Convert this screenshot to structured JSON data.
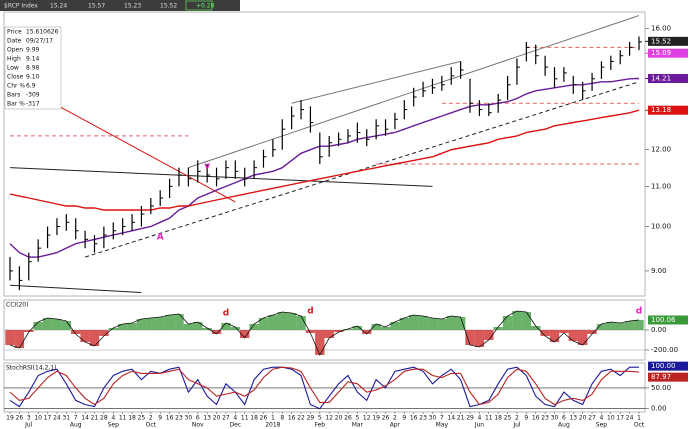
{
  "header": {
    "title": "$RCP Index",
    "quote": [
      "15.24",
      "15.57",
      "15.23",
      "15.52",
      "+0.28"
    ]
  },
  "info_box": [
    [
      "Price",
      "15.610626"
    ],
    [
      "Date",
      "09/27/17"
    ],
    [
      "Open",
      "9.99"
    ],
    [
      "High",
      "9.14"
    ],
    [
      "Low",
      "8.98"
    ],
    [
      "Close",
      "9.10"
    ],
    [
      "Chr %",
      "6.9"
    ],
    [
      "Bars",
      "-309"
    ],
    [
      "Bar %",
      "-317"
    ]
  ],
  "chart_data": [
    {
      "type": "ohlc",
      "log_scale": true,
      "categories": [
        "19",
        "26",
        "3",
        "10",
        "17",
        "24",
        "31",
        "7",
        "14",
        "21",
        "28",
        "4",
        "11",
        "18",
        "25",
        "2",
        "9",
        "16",
        "23",
        "30",
        "6",
        "13",
        "20",
        "27",
        "4",
        "11",
        "18",
        "26",
        "1",
        "8",
        "16",
        "22",
        "29",
        "5",
        "12",
        "20",
        "26",
        "5",
        "12",
        "19",
        "26",
        "2",
        "9",
        "16",
        "23",
        "30",
        "7",
        "14",
        "21",
        "29",
        "4",
        "11",
        "18",
        "25",
        "2",
        "9",
        "16",
        "23",
        "30",
        "6",
        "13",
        "20",
        "27",
        "4",
        "10",
        "17",
        "24",
        "1"
      ],
      "month_labels": [
        null,
        null,
        "Jul",
        null,
        null,
        null,
        null,
        "Aug",
        null,
        null,
        null,
        "Sep",
        null,
        null,
        null,
        "Oct",
        null,
        null,
        null,
        null,
        "Nov",
        null,
        null,
        null,
        "Dec",
        null,
        null,
        null,
        "2018",
        null,
        null,
        null,
        null,
        "Feb",
        null,
        null,
        null,
        "Mar",
        null,
        null,
        null,
        "Apr",
        null,
        null,
        null,
        null,
        "May",
        null,
        null,
        null,
        "Jun",
        null,
        null,
        null,
        "Jul",
        null,
        null,
        null,
        null,
        "Aug",
        null,
        null,
        null,
        "Sep",
        null,
        null,
        null,
        "Oct"
      ],
      "high": [
        9.3,
        9.1,
        9.4,
        9.7,
        10.0,
        10.2,
        10.3,
        10.2,
        9.9,
        9.8,
        10.0,
        10.1,
        10.2,
        10.3,
        10.5,
        10.7,
        10.9,
        11.2,
        11.5,
        11.5,
        11.7,
        11.6,
        11.5,
        11.7,
        11.7,
        11.5,
        11.7,
        12.0,
        12.3,
        12.9,
        13.3,
        13.5,
        13.3,
        12.5,
        12.4,
        12.5,
        12.6,
        12.8,
        12.6,
        12.9,
        12.9,
        13.1,
        13.5,
        13.9,
        14.1,
        14.2,
        14.3,
        14.6,
        14.8,
        14.2,
        13.5,
        13.4,
        13.7,
        14.3,
        14.9,
        15.5,
        15.4,
        15.0,
        14.6,
        14.6,
        14.3,
        14.1,
        14.4,
        14.8,
        15.0,
        15.2,
        15.5,
        15.7
      ],
      "low": [
        8.8,
        8.6,
        8.8,
        9.2,
        9.5,
        9.8,
        9.9,
        9.7,
        9.5,
        9.4,
        9.5,
        9.7,
        9.8,
        9.9,
        10.0,
        10.3,
        10.5,
        10.7,
        11.0,
        11.0,
        11.1,
        11.1,
        11.0,
        11.2,
        11.2,
        11.0,
        11.2,
        11.5,
        11.8,
        12.0,
        12.6,
        12.9,
        12.5,
        11.6,
        11.8,
        12.1,
        12.2,
        12.2,
        12.1,
        12.3,
        12.4,
        12.6,
        12.9,
        13.3,
        13.6,
        13.7,
        13.8,
        14.0,
        14.2,
        13.1,
        13.0,
        13.0,
        13.1,
        13.5,
        14.0,
        14.8,
        14.7,
        14.3,
        13.9,
        14.1,
        13.7,
        13.5,
        13.8,
        14.2,
        14.5,
        14.7,
        15.0,
        15.2
      ],
      "close": [
        9.0,
        8.8,
        9.2,
        9.5,
        9.8,
        10.0,
        10.1,
        9.9,
        9.7,
        9.6,
        9.8,
        9.9,
        10.0,
        10.1,
        10.3,
        10.5,
        10.7,
        11.0,
        11.3,
        11.2,
        11.4,
        11.3,
        11.2,
        11.5,
        11.4,
        11.2,
        11.5,
        11.8,
        12.0,
        12.6,
        13.0,
        13.2,
        12.8,
        11.8,
        12.2,
        12.3,
        12.4,
        12.5,
        12.3,
        12.7,
        12.6,
        12.9,
        13.2,
        13.6,
        13.8,
        13.9,
        14.0,
        14.3,
        14.5,
        13.4,
        13.2,
        13.1,
        13.5,
        14.0,
        14.6,
        15.3,
        15.0,
        14.6,
        14.2,
        14.4,
        14.0,
        13.8,
        14.2,
        14.6,
        14.8,
        15.0,
        15.3,
        15.5
      ],
      "bar_color": "#000000",
      "series": [
        {
          "color": "#6a1b9a",
          "values": [
            9.6,
            9.4,
            9.3,
            9.3,
            9.35,
            9.4,
            9.5,
            9.6,
            9.65,
            9.7,
            9.75,
            9.8,
            9.85,
            9.9,
            9.95,
            10.0,
            10.1,
            10.2,
            10.4,
            10.5,
            10.7,
            10.8,
            10.9,
            11.0,
            11.1,
            11.2,
            11.3,
            11.35,
            11.4,
            11.5,
            11.7,
            11.9,
            12.0,
            12.1,
            12.1,
            12.15,
            12.2,
            12.3,
            12.35,
            12.4,
            12.45,
            12.5,
            12.6,
            12.7,
            12.8,
            12.9,
            13.0,
            13.1,
            13.2,
            13.3,
            13.35,
            13.35,
            13.4,
            13.45,
            13.55,
            13.7,
            13.8,
            13.85,
            13.9,
            13.95,
            14.0,
            14.0,
            14.05,
            14.1,
            14.1,
            14.15,
            14.2,
            14.21
          ]
        },
        {
          "color": "#dd1111",
          "values": [
            10.8,
            10.75,
            10.7,
            10.65,
            10.6,
            10.55,
            10.5,
            10.5,
            10.45,
            10.45,
            10.4,
            10.4,
            10.4,
            10.4,
            10.4,
            10.4,
            10.45,
            10.45,
            10.5,
            10.5,
            10.55,
            10.6,
            10.65,
            10.7,
            10.75,
            10.8,
            10.85,
            10.9,
            10.95,
            11.0,
            11.05,
            11.1,
            11.15,
            11.2,
            11.25,
            11.3,
            11.35,
            11.4,
            11.45,
            11.5,
            11.55,
            11.6,
            11.65,
            11.7,
            11.75,
            11.8,
            11.9,
            12.0,
            12.05,
            12.1,
            12.15,
            12.2,
            12.3,
            12.35,
            12.4,
            12.5,
            12.55,
            12.6,
            12.7,
            12.75,
            12.8,
            12.85,
            12.9,
            12.95,
            13.0,
            13.05,
            13.1,
            13.18
          ]
        }
      ],
      "ylim": [
        8.48,
        16.64
      ],
      "yticks": [
        {
          "value": 16,
          "label": "16.00"
        },
        {
          "value": 12,
          "label": "12.00"
        },
        {
          "value": 11,
          "label": "11.00"
        },
        {
          "value": 10,
          "label": "10.00"
        },
        {
          "value": 9,
          "label": "9.00"
        }
      ],
      "price_markers": [
        {
          "value": 15.52,
          "label": "15.52",
          "color": "#222222"
        },
        {
          "value": 15.09,
          "label": "15.09",
          "color": "#e040e0"
        },
        {
          "value": 14.21,
          "label": "14.21",
          "color": "#6a1b9a"
        },
        {
          "value": 13.18,
          "label": "13.18",
          "color": "#dd1111"
        }
      ],
      "trendlines": [
        {
          "from": [
            19,
            11.5
          ],
          "to": [
            67,
            16.5
          ],
          "color": "#777777",
          "dashed": false
        },
        {
          "from": [
            30,
            13.4
          ],
          "to": [
            48,
            14.8
          ],
          "color": "#777777",
          "dashed": false
        },
        {
          "from": [
            8,
            9.3
          ],
          "to": [
            67,
            14.1
          ],
          "color": "#222222",
          "dashed": true
        },
        {
          "from": [
            0,
            11.5
          ],
          "to": [
            45,
            11.0
          ],
          "color": "#222222",
          "dashed": false
        },
        {
          "from": [
            0,
            8.7
          ],
          "to": [
            14,
            8.55
          ],
          "color": "#222222",
          "dashed": false
        },
        {
          "from": [
            1,
            14.0
          ],
          "to": [
            24,
            10.6
          ],
          "color": "#dd1111",
          "dashed": false
        },
        {
          "from": [
            0,
            12.4
          ],
          "to": [
            19,
            12.4
          ],
          "color": "#dd6666",
          "dashed": true
        },
        {
          "from": [
            39,
            11.6
          ],
          "to": [
            67,
            11.6
          ],
          "color": "#dd6666",
          "dashed": true
        },
        {
          "from": [
            46,
            13.4
          ],
          "to": [
            67,
            13.4
          ],
          "color": "#dd6666",
          "dashed": true
        },
        {
          "from": [
            55,
            15.3
          ],
          "to": [
            67,
            15.3
          ],
          "color": "#dd6666",
          "dashed": true
        }
      ],
      "annotations": [
        {
          "text": "A",
          "at": [
            16,
            9.75
          ],
          "color": "#e020c0"
        },
        {
          "text": "v",
          "at": [
            21,
            11.55
          ],
          "color": "#e020c0"
        }
      ]
    },
    {
      "type": "cci",
      "title": "CCI(20)",
      "pos_color": "#3a9a3a",
      "neg_color": "#cc2222",
      "values": [
        -150,
        -180,
        -20,
        80,
        120,
        110,
        90,
        -40,
        -120,
        -160,
        -60,
        20,
        60,
        70,
        110,
        120,
        130,
        150,
        160,
        60,
        80,
        20,
        -40,
        70,
        30,
        -80,
        60,
        120,
        150,
        180,
        170,
        140,
        -30,
        -250,
        -80,
        -20,
        10,
        40,
        -40,
        60,
        30,
        80,
        120,
        150,
        140,
        120,
        110,
        140,
        130,
        -150,
        -170,
        -100,
        30,
        140,
        190,
        180,
        40,
        -60,
        -120,
        -30,
        -110,
        -150,
        -40,
        60,
        80,
        70,
        90,
        100.06
      ],
      "ylim": [
        -300,
        300
      ],
      "yticks": [
        {
          "value": 0,
          "label": "0.00"
        },
        {
          "value": -200,
          "label": "-200.00"
        }
      ],
      "annotations": [
        {
          "text": "d",
          "at": [
            23,
            170
          ],
          "color": "#cc2222"
        },
        {
          "text": "d",
          "at": [
            32,
            190
          ],
          "color": "#cc2222"
        },
        {
          "text": "d",
          "at": [
            67,
            190
          ],
          "color": "#e020c0"
        }
      ]
    },
    {
      "type": "stoch",
      "title": "StochRSI(14,2,1)",
      "series": [
        {
          "color": "#1a1a9a",
          "last_label": "100.00",
          "values": [
            20,
            5,
            40,
            80,
            90,
            95,
            60,
            20,
            10,
            5,
            50,
            80,
            90,
            95,
            70,
            90,
            85,
            95,
            100,
            40,
            70,
            30,
            10,
            60,
            40,
            10,
            70,
            95,
            100,
            100,
            95,
            80,
            10,
            0,
            30,
            60,
            80,
            40,
            20,
            70,
            50,
            90,
            95,
            100,
            90,
            60,
            80,
            95,
            70,
            5,
            10,
            20,
            60,
            95,
            100,
            80,
            30,
            10,
            5,
            40,
            20,
            10,
            60,
            90,
            95,
            80,
            100,
            100
          ]
        },
        {
          "color": "#bb2222",
          "values": [
            40,
            20,
            25,
            50,
            75,
            90,
            80,
            50,
            25,
            10,
            25,
            60,
            80,
            90,
            85,
            85,
            85,
            90,
            95,
            70,
            60,
            50,
            30,
            35,
            40,
            30,
            45,
            75,
            95,
            100,
            98,
            90,
            50,
            15,
            15,
            40,
            65,
            60,
            40,
            45,
            55,
            70,
            90,
            95,
            95,
            80,
            75,
            85,
            85,
            40,
            10,
            15,
            35,
            75,
            95,
            90,
            60,
            25,
            10,
            20,
            25,
            20,
            35,
            70,
            90,
            90,
            90,
            87.97
          ]
        }
      ],
      "ylim": [
        -8,
        110
      ],
      "yticks": [
        {
          "value": 50,
          "label": "50.00"
        },
        {
          "value": 0,
          "label": "0.00"
        }
      ]
    }
  ]
}
